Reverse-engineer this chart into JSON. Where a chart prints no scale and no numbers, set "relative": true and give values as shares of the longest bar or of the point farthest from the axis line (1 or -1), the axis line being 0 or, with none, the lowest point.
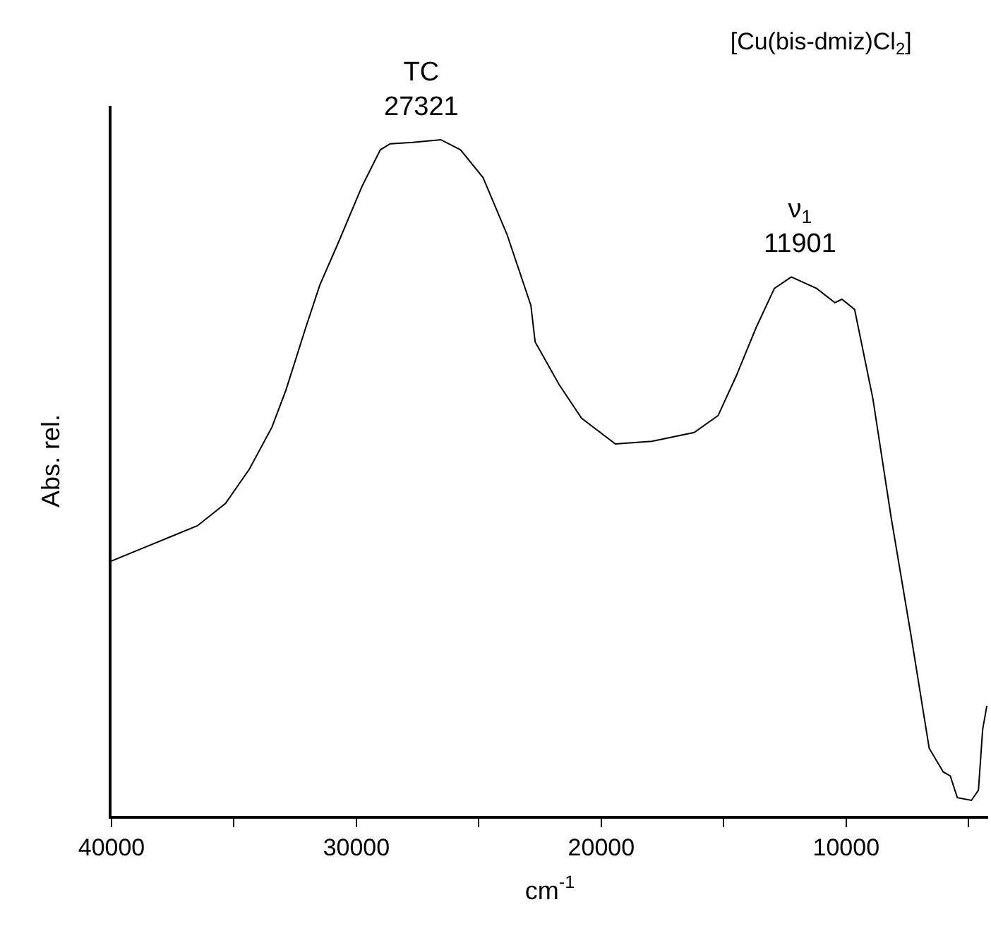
{
  "chart_data": {
    "type": "line",
    "title": "[Cu(bis-dmiz)Cl$_{2}$]",
    "xlabel": "cm$^{-1}$",
    "ylabel": "Abs. rel.",
    "relative": true,
    "x": [
      40000,
      38793,
      37644,
      36494,
      35345,
      34368,
      33448,
      32874,
      32069,
      31494,
      30747,
      29770,
      29023,
      28621,
      27701,
      26552,
      25747,
      24828,
      23851,
      22874,
      22701,
      21724,
      20805,
      19425,
      17931,
      16207,
      15230,
      14483,
      13678,
      12931,
      12241,
      11207,
      10460,
      10172,
      9655,
      8908,
      8161,
      7356,
      6609,
      6034,
      5747,
      5460,
      4885,
      4598,
      4425,
      4253
    ],
    "series": [
      {
        "color": "#000000",
        "values": [
          0.377,
          0.395,
          0.412,
          0.429,
          0.462,
          0.513,
          0.575,
          0.63,
          0.722,
          0.785,
          0.847,
          0.931,
          0.985,
          0.994,
          0.996,
          1.0,
          0.985,
          0.944,
          0.86,
          0.755,
          0.701,
          0.638,
          0.588,
          0.55,
          0.554,
          0.567,
          0.592,
          0.651,
          0.722,
          0.78,
          0.797,
          0.78,
          0.759,
          0.764,
          0.749,
          0.617,
          0.441,
          0.268,
          0.1,
          0.065,
          0.059,
          0.027,
          0.023,
          0.038,
          0.128,
          0.163
        ]
      }
    ],
    "xlim": [
      40000,
      4200
    ],
    "xticks": [
      40000,
      {
        "value": 35000,
        "label": null
      },
      30000,
      {
        "value": 25000,
        "label": null
      },
      20000,
      {
        "value": 15000,
        "label": null
      },
      10000,
      {
        "value": 5000,
        "label": null
      }
    ],
    "annotations": [
      {
        "text": "TC\n27321",
        "x": 27321,
        "y": 1.0
      },
      {
        "text": "ν$_{1}$\n11901",
        "x": 11901,
        "y": 0.797
      }
    ],
    "marker": "none",
    "line_style": "solid"
  }
}
